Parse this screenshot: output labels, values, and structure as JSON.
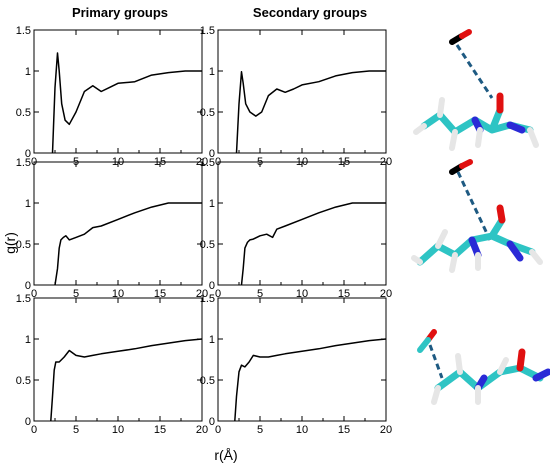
{
  "figure": {
    "column_titles": [
      "Primary groups",
      "Secondary groups"
    ],
    "shared_xlabel": "r(Å)",
    "shared_ylabel": "g(r)"
  },
  "colors": {
    "line": "#000000",
    "carbon": "#2ec4c4",
    "nitrogen": "#2a2ad6",
    "oxygen": "#e01010",
    "hydrogen": "#e6e6e6",
    "bond_dash": "#1e5a82"
  },
  "chart_data": [
    {
      "type": "line",
      "panel": "row1-primary",
      "title": "Primary groups",
      "xlim": [
        0,
        20
      ],
      "ylim": [
        0,
        1.5
      ],
      "xticks": [
        "0",
        "5",
        "10",
        "15",
        "20"
      ],
      "yticks": [
        "0",
        "0.5",
        "1",
        "1.5"
      ],
      "series": [
        {
          "x": [
            2.2,
            2.5,
            2.8,
            3.0,
            3.3,
            3.7,
            4.2,
            5.0,
            6.0,
            7.0,
            8.0,
            9.0,
            10.0,
            12.0,
            14.0,
            16.0,
            18.0,
            20.0
          ],
          "y": [
            0,
            0.8,
            1.22,
            1.0,
            0.6,
            0.4,
            0.35,
            0.5,
            0.75,
            0.82,
            0.75,
            0.8,
            0.85,
            0.87,
            0.95,
            0.98,
            1.0,
            1.0
          ]
        }
      ]
    },
    {
      "type": "line",
      "panel": "row1-secondary",
      "title": "Secondary groups",
      "xlim": [
        0,
        20
      ],
      "ylim": [
        0,
        1.5
      ],
      "xticks": [
        "0",
        "5",
        "10",
        "15",
        "20"
      ],
      "yticks": [
        "0",
        "0.5",
        "1",
        "1.5"
      ],
      "series": [
        {
          "x": [
            2.2,
            2.5,
            2.8,
            3.0,
            3.3,
            3.8,
            4.5,
            5.2,
            6.0,
            7.0,
            8.0,
            9.0,
            10.0,
            12.0,
            14.0,
            16.0,
            18.0,
            20.0
          ],
          "y": [
            0,
            0.6,
            0.99,
            0.85,
            0.6,
            0.5,
            0.45,
            0.5,
            0.7,
            0.78,
            0.74,
            0.78,
            0.83,
            0.87,
            0.94,
            0.98,
            1.0,
            1.0
          ]
        }
      ]
    },
    {
      "type": "line",
      "panel": "row2-primary",
      "xlim": [
        0,
        20
      ],
      "ylim": [
        0,
        1.5
      ],
      "xticks": [
        "0",
        "5",
        "10",
        "15",
        "20"
      ],
      "yticks": [
        "0",
        "0.5",
        "1",
        "1.5"
      ],
      "series": [
        {
          "x": [
            2.5,
            2.8,
            3.0,
            3.2,
            3.5,
            3.8,
            4.2,
            5.0,
            6.0,
            7.0,
            8.0,
            10.0,
            12.0,
            14.0,
            16.0,
            18.0,
            20.0
          ],
          "y": [
            0,
            0.2,
            0.45,
            0.55,
            0.58,
            0.6,
            0.55,
            0.58,
            0.62,
            0.7,
            0.72,
            0.8,
            0.88,
            0.95,
            1.0,
            1.0,
            1.0
          ]
        }
      ]
    },
    {
      "type": "line",
      "panel": "row2-secondary",
      "xlim": [
        0,
        20
      ],
      "ylim": [
        0,
        1.5
      ],
      "xticks": [
        "0",
        "5",
        "10",
        "15",
        "20"
      ],
      "yticks": [
        "0",
        "0.5",
        "1",
        "1.5"
      ],
      "series": [
        {
          "x": [
            2.8,
            3.0,
            3.2,
            3.5,
            3.8,
            4.2,
            5.0,
            5.8,
            6.5,
            7.0,
            8.0,
            10.0,
            12.0,
            14.0,
            16.0,
            18.0,
            20.0
          ],
          "y": [
            0,
            0.2,
            0.45,
            0.52,
            0.55,
            0.56,
            0.6,
            0.62,
            0.58,
            0.68,
            0.72,
            0.8,
            0.88,
            0.95,
            1.0,
            1.0,
            1.0
          ]
        }
      ]
    },
    {
      "type": "line",
      "panel": "row3-primary",
      "xlim": [
        0,
        20
      ],
      "ylim": [
        0,
        1.5
      ],
      "xticks": [
        "0",
        "5",
        "10",
        "15",
        "20"
      ],
      "yticks": [
        "0",
        "0.5",
        "1",
        "1.5"
      ],
      "series": [
        {
          "x": [
            2.0,
            2.2,
            2.4,
            2.6,
            3.0,
            3.6,
            4.2,
            5.0,
            6.0,
            7.0,
            8.0,
            10.0,
            12.0,
            14.0,
            16.0,
            18.0,
            20.0
          ],
          "y": [
            0,
            0.3,
            0.62,
            0.72,
            0.72,
            0.78,
            0.86,
            0.8,
            0.78,
            0.8,
            0.82,
            0.85,
            0.88,
            0.92,
            0.95,
            0.98,
            1.0
          ]
        }
      ]
    },
    {
      "type": "line",
      "panel": "row3-secondary",
      "xlim": [
        0,
        20
      ],
      "ylim": [
        0,
        1.5
      ],
      "xticks": [
        "0",
        "5",
        "10",
        "15",
        "20"
      ],
      "yticks": [
        "0",
        "0.5",
        "1",
        "1.5"
      ],
      "series": [
        {
          "x": [
            2.0,
            2.2,
            2.5,
            2.8,
            3.2,
            3.7,
            4.2,
            5.0,
            6.0,
            7.0,
            8.0,
            10.0,
            12.0,
            14.0,
            16.0,
            18.0,
            20.0
          ],
          "y": [
            0,
            0.3,
            0.6,
            0.68,
            0.66,
            0.72,
            0.8,
            0.78,
            0.78,
            0.8,
            0.82,
            0.85,
            0.88,
            0.92,
            0.95,
            0.98,
            1.0
          ]
        }
      ]
    }
  ]
}
